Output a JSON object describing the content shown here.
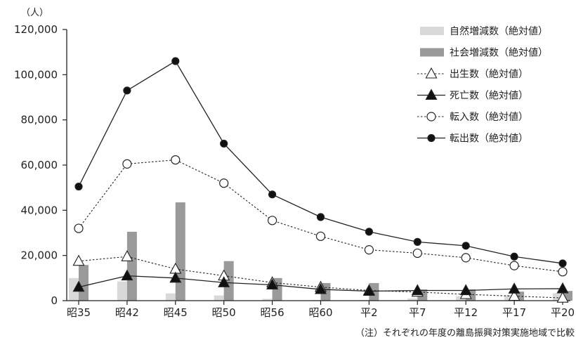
{
  "chart_data": {
    "type": "bar",
    "unit_label": "（人）",
    "note": "（注）それぞれの年度の離島振興対策実施地域で比較",
    "categories": [
      "昭35",
      "昭42",
      "昭45",
      "昭50",
      "昭56",
      "昭60",
      "平2",
      "平7",
      "平12",
      "平17",
      "平20"
    ],
    "ylim": [
      0,
      120000
    ],
    "yticks": [
      0,
      20000,
      40000,
      60000,
      80000,
      100000,
      120000
    ],
    "ytick_labels": [
      "0",
      "20,000",
      "40,000",
      "60,000",
      "80,000",
      "100,000",
      "120,000"
    ],
    "grid": false,
    "legend_position": "top-right",
    "series": [
      {
        "name": "自然増減数（絶対値）",
        "kind": "bar",
        "color": "#d9d9d9",
        "values": [
          10000,
          8500,
          3200,
          2300,
          800,
          300,
          300,
          1000,
          2000,
          2500,
          3300
        ]
      },
      {
        "name": "社会増減数（絶対値）",
        "kind": "bar",
        "color": "#9a9a9a",
        "values": [
          15800,
          30500,
          43500,
          17500,
          10000,
          7800,
          7800,
          5000,
          5000,
          4000,
          4300
        ]
      },
      {
        "name": "出生数（絶対値）",
        "kind": "line",
        "marker": "triangle-open",
        "dash": "dotted",
        "color": "#222222",
        "values": [
          17500,
          19500,
          14000,
          11000,
          8000,
          6000,
          4500,
          3800,
          2800,
          2000,
          1200
        ]
      },
      {
        "name": "死亡数（絶対値）",
        "kind": "line",
        "marker": "triangle-filled",
        "dash": "solid",
        "color": "#222222",
        "values": [
          6000,
          11000,
          10000,
          8000,
          7000,
          5000,
          4200,
          4500,
          4500,
          5200,
          5300
        ]
      },
      {
        "name": "転入数（絶対値）",
        "kind": "line",
        "marker": "circle-open",
        "dash": "dotted",
        "color": "#222222",
        "values": [
          32000,
          60500,
          62300,
          52000,
          35500,
          28500,
          22500,
          21000,
          19000,
          15500,
          12800
        ]
      },
      {
        "name": "転出数（絶対値）",
        "kind": "line",
        "marker": "circle-filled",
        "dash": "solid",
        "color": "#222222",
        "values": [
          50500,
          93000,
          106000,
          69500,
          47000,
          37000,
          30500,
          26000,
          24300,
          19500,
          16500
        ]
      }
    ]
  }
}
